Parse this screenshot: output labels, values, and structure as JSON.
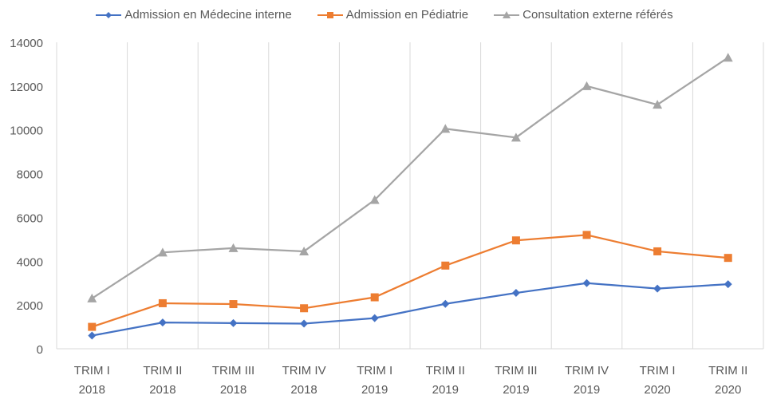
{
  "chart_data": {
    "type": "line",
    "title": "",
    "xlabel": "",
    "ylabel": "",
    "ylim": [
      0,
      14000
    ],
    "yticks": [
      0,
      2000,
      4000,
      6000,
      8000,
      10000,
      12000,
      14000
    ],
    "grid": "vertical",
    "legend_position": "top",
    "categories": [
      [
        "TRIM I",
        "2018"
      ],
      [
        "TRIM II",
        "2018"
      ],
      [
        "TRIM III",
        "2018"
      ],
      [
        "TRIM IV",
        "2018"
      ],
      [
        "TRIM I",
        "2019"
      ],
      [
        "TRIM II",
        "2019"
      ],
      [
        "TRIM III",
        "2019"
      ],
      [
        "TRIM IV",
        "2019"
      ],
      [
        "TRIM I",
        "2020"
      ],
      [
        "TRIM II",
        "2020"
      ]
    ],
    "series": [
      {
        "name": "Admission en Médecine interne",
        "color": "#4472C4",
        "marker": "diamond",
        "values": [
          600,
          1200,
          1170,
          1150,
          1400,
          2050,
          2550,
          3000,
          2750,
          2950
        ]
      },
      {
        "name": "Admission en Pédiatrie",
        "color": "#ED7D31",
        "marker": "square",
        "values": [
          1000,
          2080,
          2040,
          1850,
          2350,
          3800,
          4950,
          5200,
          4450,
          4150
        ]
      },
      {
        "name": "Consultation externe référés",
        "color": "#A5A5A5",
        "marker": "triangle",
        "values": [
          2300,
          4400,
          4600,
          4450,
          6800,
          10050,
          9650,
          12000,
          11150,
          13300
        ]
      }
    ]
  }
}
